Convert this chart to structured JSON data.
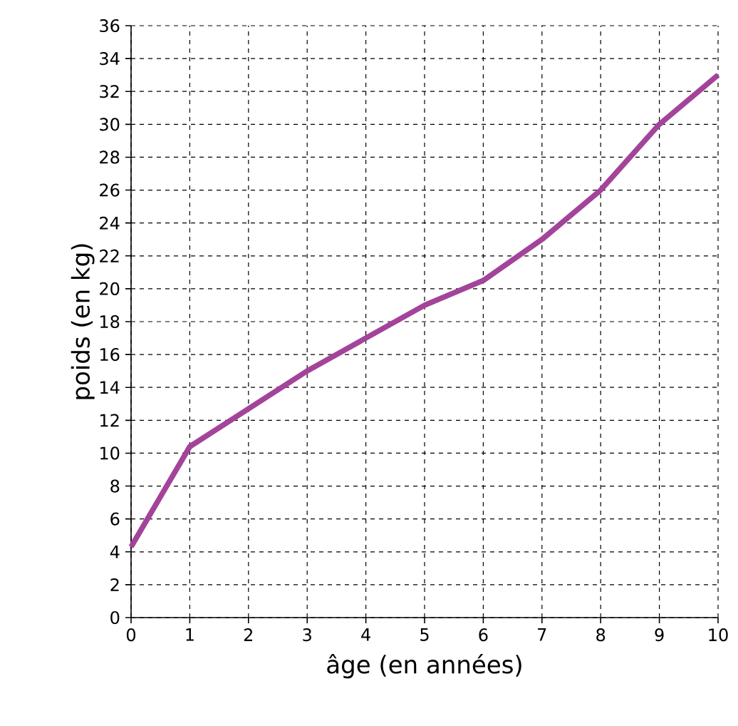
{
  "chart_data": {
    "type": "line",
    "xlabel": "âge (en années)",
    "ylabel": "poids (en kg)",
    "x": [
      0,
      1,
      2,
      3,
      4,
      5,
      6,
      7,
      8,
      9,
      10
    ],
    "series": [
      {
        "color": "#a3449a",
        "values": [
          4.3,
          10.4,
          12.7,
          15,
          17,
          19,
          20.5,
          23,
          26,
          30,
          33
        ]
      }
    ],
    "xlim": [
      0,
      10
    ],
    "ylim": [
      0,
      36
    ],
    "xticks": [
      0,
      1,
      2,
      3,
      4,
      5,
      6,
      7,
      8,
      9,
      10
    ],
    "yticks": [
      0,
      2,
      4,
      6,
      8,
      10,
      12,
      14,
      16,
      18,
      20,
      22,
      24,
      26,
      28,
      30,
      32,
      34,
      36
    ],
    "grid": true,
    "marker": "none",
    "line_style": "solid"
  }
}
